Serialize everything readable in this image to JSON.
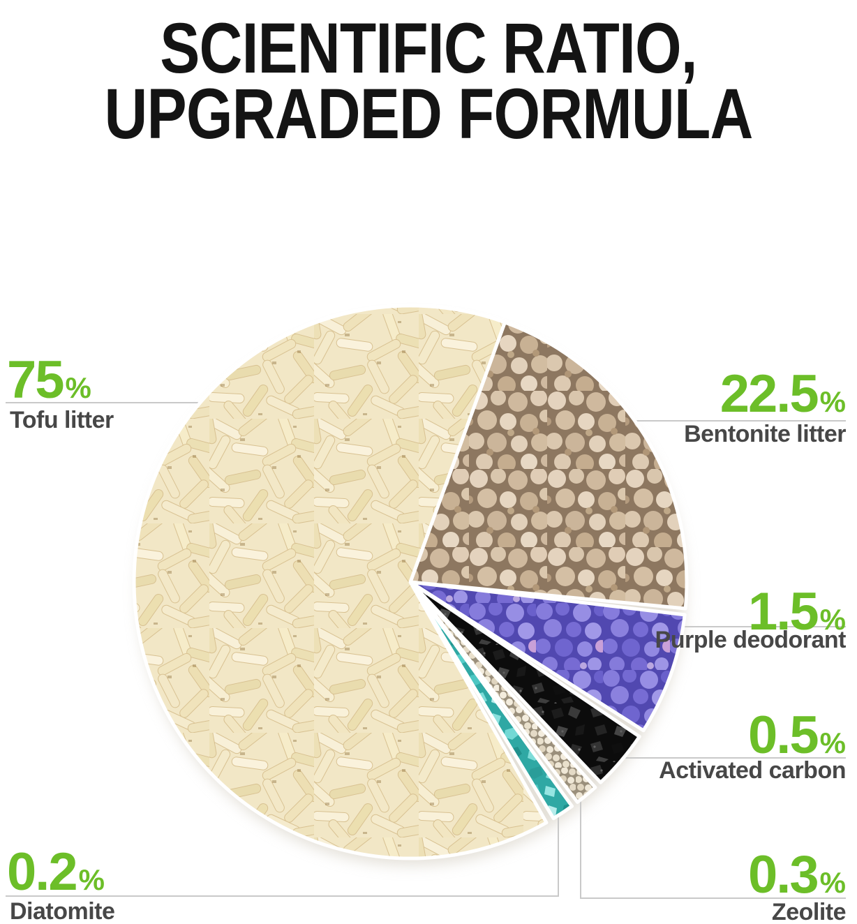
{
  "title": {
    "line1": "SCIENTIFIC RATIO,",
    "line2": "UPGRADED FORMULA"
  },
  "chart_data": {
    "type": "pie",
    "title": "SCIENTIFIC RATIO, UPGRADED FORMULA",
    "categories": [
      "Tofu litter",
      "Bentonite litter",
      "Purple deodorant",
      "Activated carbon",
      "Zeolite",
      "Diatomite"
    ],
    "values": [
      75,
      22.5,
      1.5,
      0.5,
      0.3,
      0.2
    ],
    "unit": "%",
    "legend_position": "callout labels around pie"
  },
  "labels": {
    "tofu": {
      "value": "75",
      "unit": "%",
      "name": "Tofu litter"
    },
    "bentonite": {
      "value": "22.5",
      "unit": "%",
      "name": "Bentonite litter"
    },
    "purple": {
      "value": "1.5",
      "unit": "%",
      "name": "Purple deodorant"
    },
    "carbon": {
      "value": "0.5",
      "unit": "%",
      "name": "Activated carbon"
    },
    "zeolite": {
      "value": "0.3",
      "unit": "%",
      "name": "Zeolite"
    },
    "diatomite": {
      "value": "0.2",
      "unit": "%",
      "name": "Diatomite"
    }
  },
  "colors": {
    "accent_green": "#6cbe28",
    "label_gray": "#474747",
    "title_black": "#141414",
    "leader_line": "#c9c9c9",
    "tofu_base": "#f2e7c6",
    "bentonite_base": "#8d7760",
    "purple_base": "#5148b0",
    "carbon_base": "#0c0c0c",
    "zeolite_base": "#9a8f7b",
    "diatomite_base": "#2fa8a4"
  }
}
